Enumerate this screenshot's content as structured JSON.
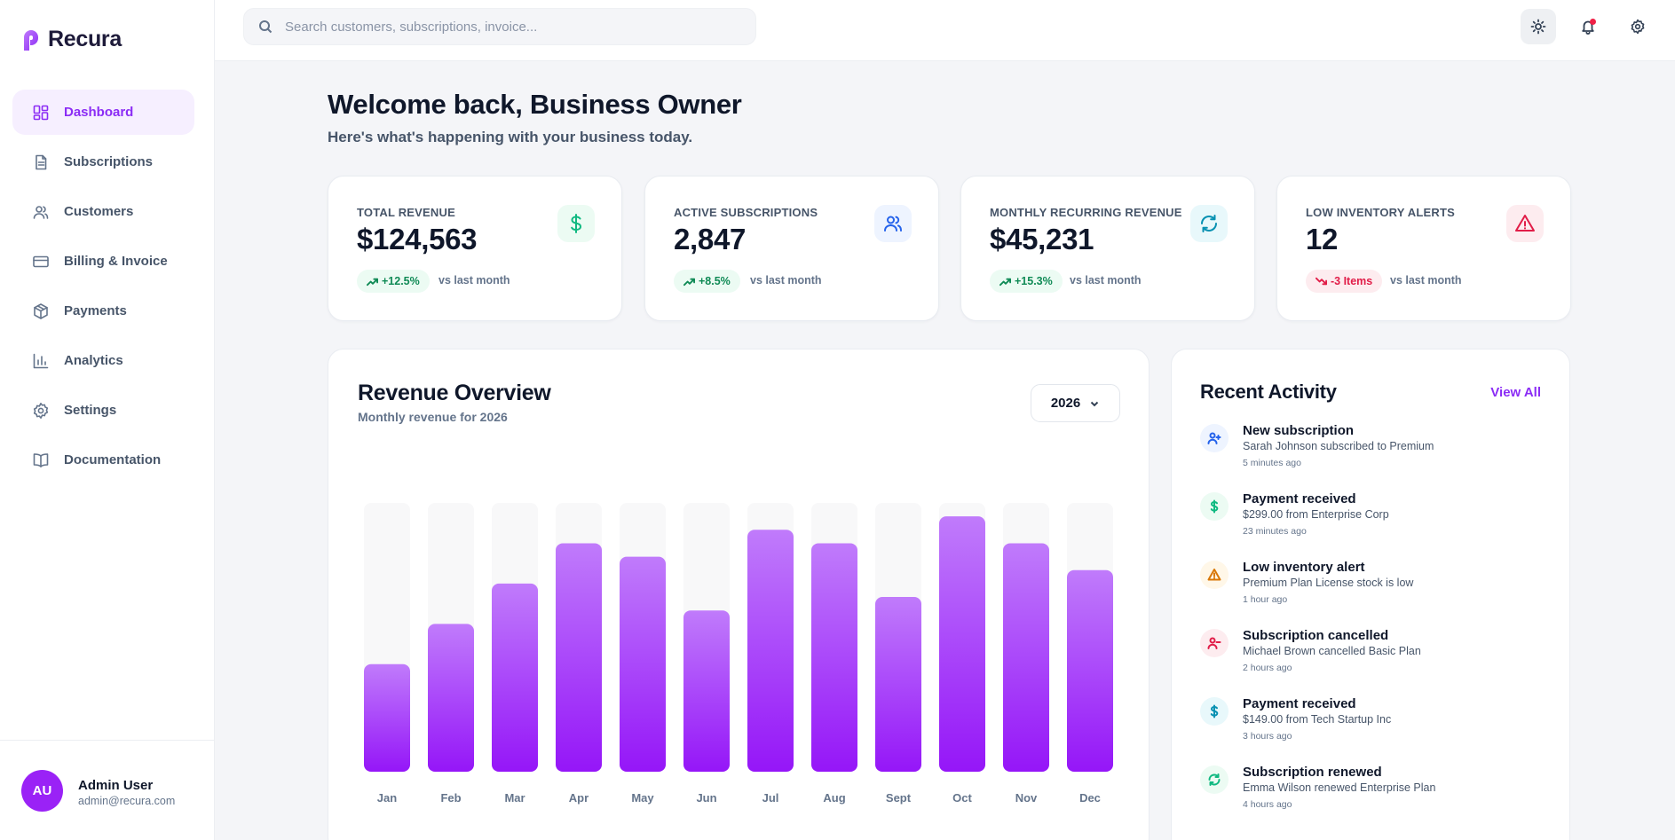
{
  "brand": {
    "name": "Recura"
  },
  "sidebar": {
    "items": [
      {
        "label": "Dashboard",
        "icon": "dashboard-icon",
        "active": true
      },
      {
        "label": "Subscriptions",
        "icon": "document-icon"
      },
      {
        "label": "Customers",
        "icon": "users-icon"
      },
      {
        "label": "Billing & Invoice",
        "icon": "credit-card-icon"
      },
      {
        "label": "Payments",
        "icon": "package-icon"
      },
      {
        "label": "Analytics",
        "icon": "bar-chart-icon"
      },
      {
        "label": "Settings",
        "icon": "gear-icon"
      },
      {
        "label": "Documentation",
        "icon": "book-icon"
      }
    ],
    "user": {
      "initials": "AU",
      "name": "Admin User",
      "email": "admin@recura.com"
    }
  },
  "topbar": {
    "search_placeholder": "Search customers, subscriptions, invoice...",
    "search_value": "",
    "buttons": [
      "sun-icon",
      "bell-icon",
      "gear-icon"
    ]
  },
  "main": {
    "welcome_title": "Welcome back, Business Owner",
    "welcome_sub": "Here's what's happening with your business today."
  },
  "stats": [
    {
      "label": "TOTAL REVENUE",
      "value": "$124,563",
      "change": "+12.5%",
      "vs": "vs last month",
      "trend": "up",
      "icon": "dollar-icon",
      "icon_color": "#10b981",
      "icon_bg": "#ecfbf3"
    },
    {
      "label": "ACTIVE SUBSCRIPTIONS",
      "value": "2,847",
      "change": "+8.5%",
      "vs": "vs last month",
      "trend": "up",
      "icon": "users-icon",
      "icon_color": "#2563eb",
      "icon_bg": "#eef4ff"
    },
    {
      "label": "MONTHLY RECURRING REVENUE",
      "value": "$45,231",
      "change": "+15.3%",
      "vs": "vs last month",
      "trend": "up",
      "icon": "refresh-icon",
      "icon_color": "#0891b2",
      "icon_bg": "#e8f8fb"
    },
    {
      "label": "LOW INVENTORY ALERTS",
      "value": "12",
      "change": "-3 Items",
      "vs": "vs last month",
      "trend": "down",
      "icon": "alert-triangle-icon",
      "icon_color": "#e11d48",
      "icon_bg": "#fdecef"
    }
  ],
  "revenue": {
    "title": "Revenue Overview",
    "subtitle": "Monthly revenue for 2026",
    "year": "2026"
  },
  "chart_data": {
    "type": "bar",
    "categories": [
      "Jan",
      "Feb",
      "Mar",
      "Apr",
      "May",
      "Jun",
      "Jul",
      "Aug",
      "Sept",
      "Oct",
      "Nov",
      "Dec"
    ],
    "values": [
      40,
      55,
      70,
      85,
      80,
      60,
      90,
      85,
      65,
      95,
      85,
      75
    ],
    "ylim": [
      0,
      100
    ],
    "title": "Revenue Overview",
    "subtitle": "Monthly revenue for 2026",
    "xlabel": "",
    "ylabel": "",
    "grid": false,
    "colors": {
      "bar_top": "#c07bfb",
      "bar_bottom": "#9516f8",
      "track": "#f8f8f9"
    }
  },
  "activity": {
    "title": "Recent Activity",
    "view_all": "View All",
    "items": [
      {
        "title": "New subscription",
        "desc": "Sarah Johnson subscribed to Premium",
        "time": "5 minutes ago",
        "icon": "user-plus-icon",
        "color": "#2563eb",
        "bg": "#eef4ff"
      },
      {
        "title": "Payment received",
        "desc": "$299.00 from Enterprise Corp",
        "time": "23 minutes ago",
        "icon": "dollar-icon",
        "color": "#10b981",
        "bg": "#ecfbf3"
      },
      {
        "title": "Low inventory alert",
        "desc": "Premium Plan License stock is low",
        "time": "1 hour ago",
        "icon": "alert-triangle-icon",
        "color": "#d97706",
        "bg": "#fff7e8"
      },
      {
        "title": "Subscription cancelled",
        "desc": "Michael Brown cancelled Basic Plan",
        "time": "2 hours ago",
        "icon": "user-minus-icon",
        "color": "#e11d48",
        "bg": "#fdecef"
      },
      {
        "title": "Payment received",
        "desc": "$149.00 from Tech Startup Inc",
        "time": "3 hours ago",
        "icon": "dollar-icon",
        "color": "#0891b2",
        "bg": "#e8f8fb"
      },
      {
        "title": "Subscription renewed",
        "desc": "Emma Wilson renewed Enterprise Plan",
        "time": "4 hours ago",
        "icon": "refresh-icon",
        "color": "#10b981",
        "bg": "#ecfbf3"
      }
    ]
  }
}
